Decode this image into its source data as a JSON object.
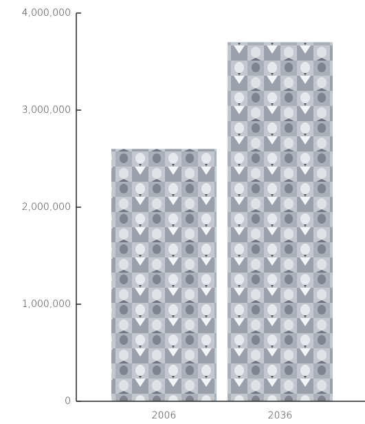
{
  "chart_data": {
    "type": "bar",
    "categories": [
      "2006",
      "2036"
    ],
    "values": [
      2600000,
      3700000
    ],
    "color": "#b9bfc7",
    "ylim": [
      0,
      4000000
    ],
    "yticks": [
      0,
      {
        "value": 1000000,
        "label": "1,000,000"
      },
      {
        "value": 2000000,
        "label": "2,000,000"
      },
      {
        "value": 3000000,
        "label": "3,000,000"
      },
      {
        "value": 4000000,
        "label": "4,000,000"
      }
    ],
    "grid": false
  }
}
